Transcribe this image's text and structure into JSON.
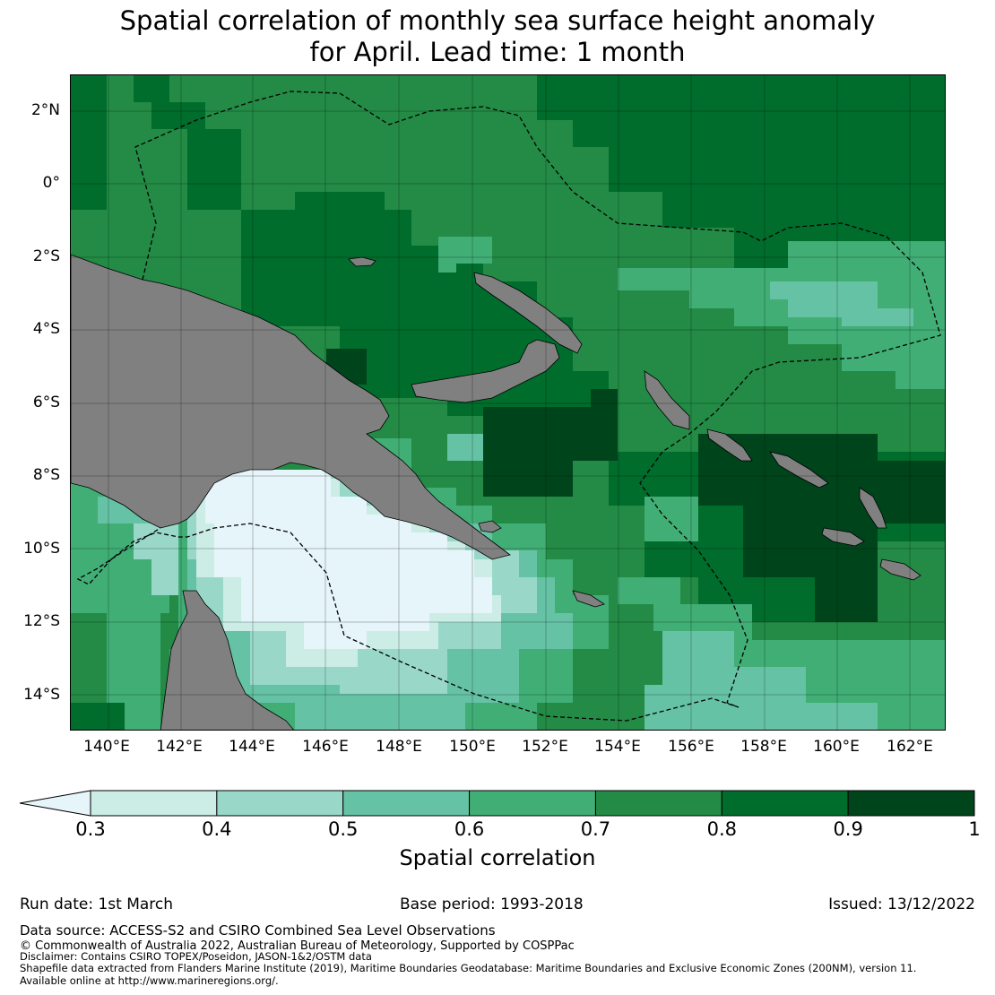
{
  "title": {
    "line1": "Spatial correlation of monthly sea surface height anomaly",
    "line2": "for April. Lead time: 1 month"
  },
  "map": {
    "lat_labels": [
      "2°N",
      "0°",
      "2°S",
      "4°S",
      "6°S",
      "8°S",
      "10°S",
      "12°S",
      "14°S"
    ],
    "lon_labels": [
      "140°E",
      "142°E",
      "144°E",
      "146°E",
      "148°E",
      "150°E",
      "152°E",
      "154°E",
      "156°E",
      "158°E",
      "160°E",
      "162°E"
    ],
    "extent": {
      "lon_min": 139.0,
      "lon_max": 163.0,
      "lat_min": -15.0,
      "lat_max": 3.0
    },
    "land_color": "#808080",
    "boundary_style": "dashed black line (EEZ)"
  },
  "colorbar": {
    "label": "Spatial correlation",
    "ticks": [
      "0.3",
      "0.4",
      "0.5",
      "0.6",
      "0.7",
      "0.8",
      "0.9",
      "1"
    ],
    "extend": "min",
    "colors": [
      "#e5f5f9",
      "#ccece6",
      "#99d8c9",
      "#66c2a4",
      "#41ae76",
      "#238b45",
      "#006d2c",
      "#00441b"
    ]
  },
  "info": {
    "run_date": "Run date: 1st March",
    "base_period": "Base period: 1993-2018",
    "issued": "Issued: 13/12/2022"
  },
  "footer": {
    "data_source": "Data source: ACCESS-S2 and CSIRO Combined Sea Level Observations",
    "copyright": "© Commonwealth of Australia 2022, Australian Bureau of Meteorology, Supported by COSPPac",
    "disclaimer": "Disclaimer: Contains CSIRO TOPEX/Poseidon, JASON-1&2/OSTM data",
    "shapefile": "Shapefile data extracted from Flanders Marine Institute (2019), Maritime Boundaries Geodatabase: Maritime Boundaries and Exclusive Economic Zones (200NM), version 11.",
    "available": "Available online at http://www.marineregions.org/."
  }
}
